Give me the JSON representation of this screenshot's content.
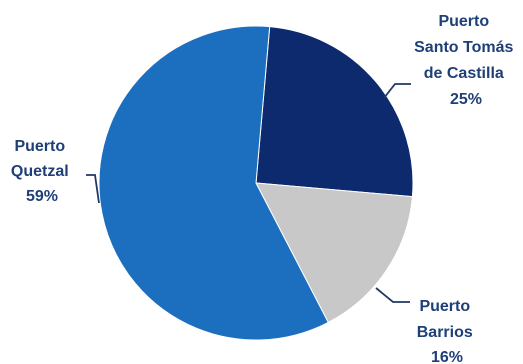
{
  "chart_data": {
    "type": "pie",
    "title": "",
    "slices": [
      {
        "name": "Puerto Santo Tomás de Castilla",
        "label_lines": [
          "Puerto",
          "Santo Tomás",
          "de Castilla"
        ],
        "value": 25,
        "value_label": "25%",
        "color": "#0e2a6e"
      },
      {
        "name": "Puerto Barrios",
        "label_lines": [
          "Puerto",
          "Barrios"
        ],
        "value": 16,
        "value_label": "16%",
        "color": "#c8c8c8"
      },
      {
        "name": "Puerto Quetzal",
        "label_lines": [
          "Puerto",
          "Quetzal"
        ],
        "value": 59,
        "value_label": "59%",
        "color": "#1c6fbf"
      }
    ],
    "start_angle_deg": 5,
    "direction": "clockwise",
    "legend": "none"
  }
}
